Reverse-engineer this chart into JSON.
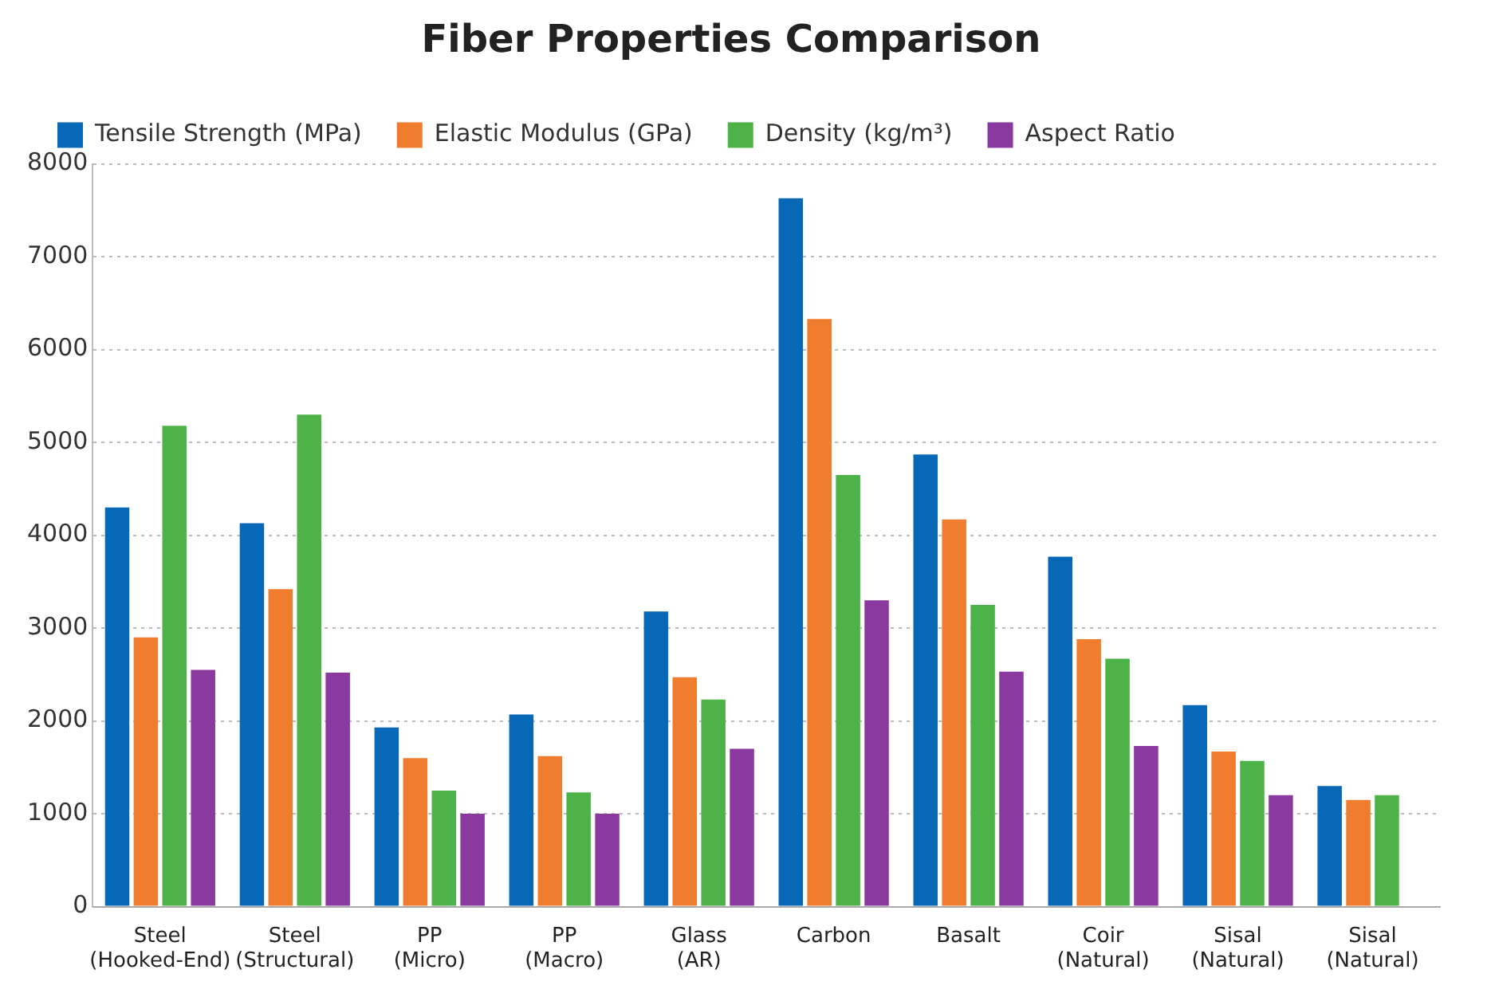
{
  "chart_data": {
    "type": "bar",
    "title": "Fiber Properties Comparison",
    "categories": [
      "Steel\n(Hooked-End)",
      "Steel\n(Structural)",
      "PP\n(Micro)",
      "PP\n(Macro)",
      "Glass\n(AR)",
      "Carbon",
      "Basalt",
      "Coir\n(Natural)",
      "Sisal\n(Natural)",
      "Sisal\n(Natural)"
    ],
    "series": [
      {
        "name": "Tensile Strength (MPa)",
        "color": "#0868b8",
        "values": [
          4300,
          4130,
          1930,
          2070,
          3180,
          7630,
          4870,
          3770,
          2170,
          1300
        ]
      },
      {
        "name": "Elastic Modulus (GPa)",
        "color": "#ef7d2d",
        "values": [
          2900,
          3420,
          1600,
          1620,
          2470,
          6330,
          4170,
          2880,
          1670,
          1150
        ]
      },
      {
        "name": "Density (kg/m³)",
        "color": "#4db348",
        "values": [
          5180,
          5300,
          1250,
          1230,
          2230,
          4650,
          3250,
          2670,
          1570,
          1200
        ]
      },
      {
        "name": "Aspect Ratio",
        "color": "#8a3a9e",
        "values": [
          2550,
          2520,
          1000,
          1000,
          1700,
          3300,
          2530,
          1730,
          1200,
          null
        ]
      }
    ],
    "ylim": [
      0,
      8000
    ],
    "yticks": [
      0,
      1000,
      2000,
      3000,
      4000,
      5000,
      6000,
      7000,
      8000
    ],
    "grid": "y",
    "legend": "top left"
  }
}
